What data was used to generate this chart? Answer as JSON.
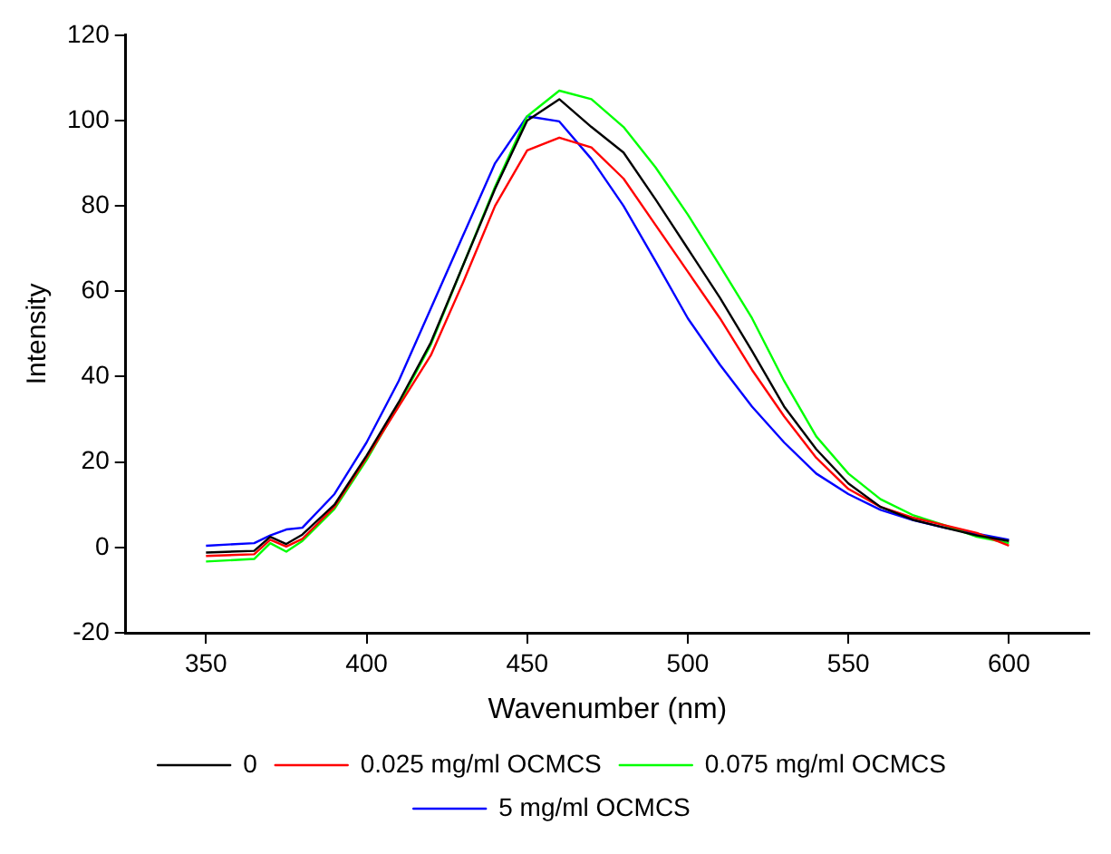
{
  "chart_data": {
    "type": "line",
    "xlabel": "Wavenumber (nm)",
    "ylabel": "Intensity",
    "x": [
      350,
      365,
      370,
      375,
      380,
      390,
      400,
      410,
      420,
      430,
      440,
      450,
      460,
      470,
      480,
      490,
      500,
      510,
      520,
      530,
      540,
      550,
      560,
      570,
      580,
      590,
      600
    ],
    "series": [
      {
        "name": "0",
        "color": "#000000",
        "values": [
          -1.2,
          -0.8,
          2.5,
          0.8,
          3,
          10,
          21.5,
          34,
          48,
          66,
          84,
          100,
          105,
          98.5,
          92.5,
          81.5,
          70,
          58.5,
          46,
          33,
          23,
          15,
          9.5,
          6.5,
          4.6,
          2.8,
          1.5
        ]
      },
      {
        "name": "0.025 mg/ml OCMCS",
        "color": "#ff0000",
        "values": [
          -2,
          -1.6,
          1.8,
          0.2,
          2,
          9.5,
          21,
          33,
          45,
          62,
          80,
          93,
          96,
          93.7,
          86.4,
          75.5,
          64.6,
          53.7,
          41.6,
          30.7,
          21,
          13.7,
          9.5,
          7,
          5.2,
          3.4,
          0.4
        ]
      },
      {
        "name": "0.075 mg/ml OCMCS",
        "color": "#00ff00",
        "values": [
          -3.3,
          -2.7,
          1,
          -1,
          1.5,
          9,
          20.5,
          33.5,
          47.5,
          66,
          84.5,
          101,
          107,
          105,
          98.5,
          89,
          78,
          66,
          53.7,
          39,
          26,
          17.3,
          11.3,
          7.6,
          5.2,
          2.5,
          1
        ]
      },
      {
        "name": "5 mg/ml OCMCS",
        "color": "#0000ff",
        "values": [
          0.4,
          1,
          2.8,
          4.2,
          4.6,
          12.5,
          24.6,
          39,
          56,
          73,
          90,
          101,
          99.8,
          91,
          80,
          67,
          53.7,
          42.8,
          33,
          24.6,
          17.3,
          12.5,
          8.8,
          6.4,
          4.6,
          3.2,
          1.8
        ]
      }
    ],
    "xlim": [
      325,
      625
    ],
    "xticks": [
      350,
      400,
      450,
      500,
      550,
      600
    ],
    "ylim": [
      -20,
      120
    ],
    "yticks": [
      -20,
      0,
      20,
      40,
      60,
      80,
      100,
      120
    ],
    "grid": false,
    "legend": "bottom",
    "marker": "none",
    "line_style": "solid"
  }
}
